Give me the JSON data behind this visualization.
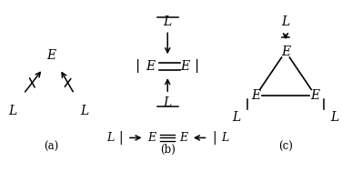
{
  "bg_color": "#ffffff",
  "title_a": "(a)",
  "title_b": "(b)",
  "title_c": "(c)",
  "label_fontsize": 10,
  "sublabel_fontsize": 8.5
}
